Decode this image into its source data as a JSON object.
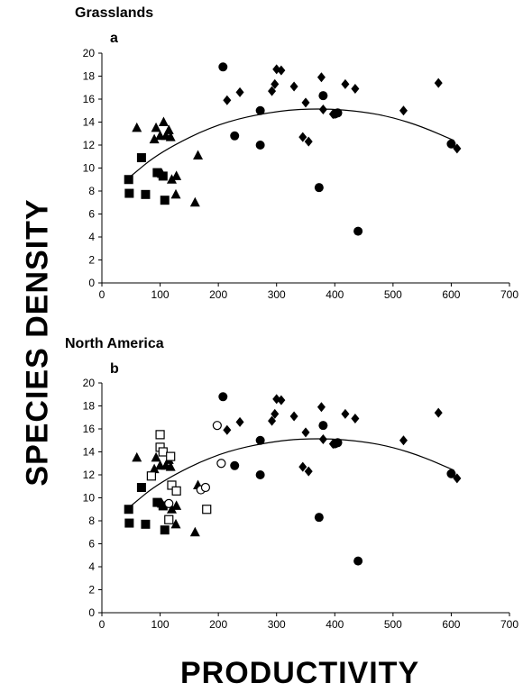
{
  "figure": {
    "ylabel": "SPECIES DENSITY",
    "xlabel": "PRODUCTIVITY"
  },
  "chart_data": [
    {
      "type": "scatter",
      "title": "Grasslands",
      "panel_label": "a",
      "xlim": [
        0,
        700
      ],
      "ylim": [
        0,
        20
      ],
      "xticks": [
        0,
        100,
        200,
        300,
        400,
        500,
        600,
        700
      ],
      "yticks": [
        0,
        2,
        4,
        6,
        8,
        10,
        12,
        14,
        16,
        18,
        20
      ],
      "grid": false,
      "series": [
        {
          "marker": "filled-square",
          "points": [
            [
              46,
              9
            ],
            [
              47,
              7.8
            ],
            [
              68,
              10.9
            ],
            [
              75,
              7.7
            ],
            [
              95,
              9.6
            ],
            [
              105,
              9.3
            ],
            [
              108,
              7.2
            ]
          ]
        },
        {
          "marker": "filled-triangle",
          "points": [
            [
              60,
              13.5
            ],
            [
              90,
              12.5
            ],
            [
              93,
              13.5
            ],
            [
              100,
              12.8
            ],
            [
              106,
              14
            ],
            [
              110,
              12.8
            ],
            [
              115,
              13.3
            ],
            [
              118,
              12.7
            ],
            [
              103,
              9.5
            ],
            [
              120,
              9
            ],
            [
              128,
              9.3
            ],
            [
              127,
              7.7
            ],
            [
              160,
              7
            ],
            [
              165,
              11.1
            ]
          ]
        },
        {
          "marker": "filled-circle",
          "points": [
            [
              208,
              18.8
            ],
            [
              228,
              12.8
            ],
            [
              272,
              15
            ],
            [
              272,
              12
            ],
            [
              373,
              8.3
            ],
            [
              380,
              16.3
            ],
            [
              400,
              14.7
            ],
            [
              405,
              14.8
            ],
            [
              440,
              4.5
            ],
            [
              600,
              12.1
            ]
          ]
        },
        {
          "marker": "filled-diamond",
          "points": [
            [
              215,
              15.9
            ],
            [
              237,
              16.6
            ],
            [
              292,
              16.7
            ],
            [
              297,
              17.3
            ],
            [
              300,
              18.6
            ],
            [
              308,
              18.5
            ],
            [
              330,
              17.1
            ],
            [
              345,
              12.7
            ],
            [
              350,
              15.7
            ],
            [
              355,
              12.3
            ],
            [
              377,
              17.9
            ],
            [
              380,
              15.1
            ],
            [
              397,
              14.7
            ],
            [
              418,
              17.3
            ],
            [
              435,
              16.9
            ],
            [
              518,
              15
            ],
            [
              578,
              17.4
            ],
            [
              610,
              11.7
            ]
          ]
        }
      ],
      "fit": {
        "type": "quadratic",
        "x_range": [
          45,
          605
        ],
        "points": [
          [
            45,
            9.1
          ],
          [
            100,
            11.4
          ],
          [
            200,
            13.9
          ],
          [
            300,
            15.0
          ],
          [
            380,
            15.2
          ],
          [
            450,
            14.9
          ],
          [
            500,
            14.4
          ],
          [
            550,
            13.6
          ],
          [
            605,
            12.4
          ]
        ]
      }
    },
    {
      "type": "scatter",
      "title": "North America",
      "panel_label": "b",
      "xlim": [
        0,
        700
      ],
      "ylim": [
        0,
        20
      ],
      "xticks": [
        0,
        100,
        200,
        300,
        400,
        500,
        600,
        700
      ],
      "yticks": [
        0,
        2,
        4,
        6,
        8,
        10,
        12,
        14,
        16,
        18,
        20
      ],
      "grid": false,
      "series": [
        {
          "marker": "filled-square",
          "points": [
            [
              46,
              9
            ],
            [
              47,
              7.8
            ],
            [
              68,
              10.9
            ],
            [
              75,
              7.7
            ],
            [
              95,
              9.6
            ],
            [
              105,
              9.3
            ],
            [
              108,
              7.2
            ]
          ]
        },
        {
          "marker": "filled-triangle",
          "points": [
            [
              60,
              13.5
            ],
            [
              90,
              12.5
            ],
            [
              93,
              13.5
            ],
            [
              100,
              12.8
            ],
            [
              106,
              14
            ],
            [
              110,
              12.8
            ],
            [
              115,
              13.3
            ],
            [
              118,
              12.7
            ],
            [
              103,
              9.5
            ],
            [
              120,
              9
            ],
            [
              128,
              9.3
            ],
            [
              127,
              7.7
            ],
            [
              160,
              7
            ],
            [
              165,
              11.1
            ]
          ]
        },
        {
          "marker": "filled-circle",
          "points": [
            [
              208,
              18.8
            ],
            [
              228,
              12.8
            ],
            [
              272,
              15
            ],
            [
              272,
              12
            ],
            [
              373,
              8.3
            ],
            [
              380,
              16.3
            ],
            [
              400,
              14.7
            ],
            [
              405,
              14.8
            ],
            [
              440,
              4.5
            ],
            [
              600,
              12.1
            ]
          ]
        },
        {
          "marker": "filled-diamond",
          "points": [
            [
              215,
              15.9
            ],
            [
              237,
              16.6
            ],
            [
              292,
              16.7
            ],
            [
              297,
              17.3
            ],
            [
              300,
              18.6
            ],
            [
              308,
              18.5
            ],
            [
              330,
              17.1
            ],
            [
              345,
              12.7
            ],
            [
              350,
              15.7
            ],
            [
              355,
              12.3
            ],
            [
              377,
              17.9
            ],
            [
              380,
              15.1
            ],
            [
              397,
              14.7
            ],
            [
              418,
              17.3
            ],
            [
              435,
              16.9
            ],
            [
              518,
              15
            ],
            [
              578,
              17.4
            ],
            [
              610,
              11.7
            ]
          ]
        },
        {
          "marker": "open-square",
          "points": [
            [
              85,
              11.9
            ],
            [
              100,
              15.5
            ],
            [
              100,
              14.4
            ],
            [
              105,
              14
            ],
            [
              115,
              8.1
            ],
            [
              118,
              13.6
            ],
            [
              120,
              11.1
            ],
            [
              128,
              10.6
            ],
            [
              180,
              9
            ]
          ]
        },
        {
          "marker": "open-circle",
          "points": [
            [
              115,
              9.5
            ],
            [
              170,
              10.7
            ],
            [
              178,
              10.9
            ],
            [
              198,
              16.3
            ],
            [
              205,
              13
            ]
          ]
        }
      ],
      "fit": {
        "type": "quadratic",
        "x_range": [
          45,
          605
        ],
        "points": [
          [
            45,
            9.1
          ],
          [
            100,
            11.4
          ],
          [
            200,
            13.9
          ],
          [
            300,
            15.0
          ],
          [
            380,
            15.2
          ],
          [
            450,
            14.9
          ],
          [
            500,
            14.4
          ],
          [
            550,
            13.6
          ],
          [
            605,
            12.4
          ]
        ]
      }
    }
  ]
}
